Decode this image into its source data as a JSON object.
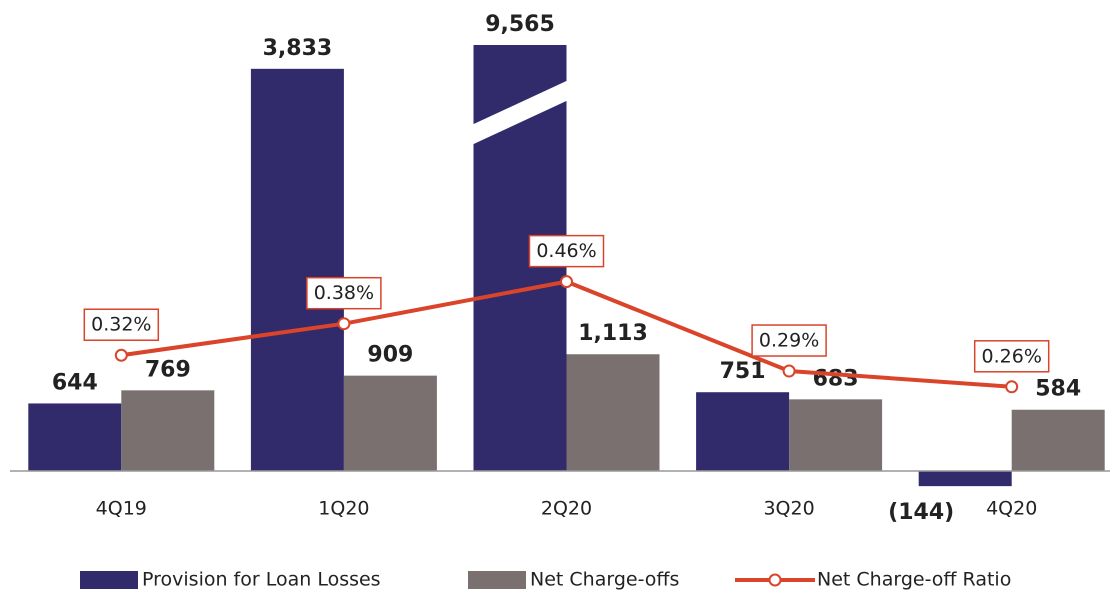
{
  "chart_data": {
    "type": "bar",
    "categories": [
      "4Q19",
      "1Q20",
      "2Q20",
      "3Q20",
      "4Q20"
    ],
    "series": [
      {
        "name": "Provision for Loan Losses",
        "color": "#312a6b",
        "values": [
          644,
          3833,
          9565,
          751,
          -144
        ],
        "value_labels": [
          "644",
          "3,833",
          "9,565",
          "751",
          "(144)"
        ]
      },
      {
        "name": "Net Charge-offs",
        "color": "#7a7070",
        "values": [
          769,
          909,
          1113,
          683,
          584
        ],
        "value_labels": [
          "769",
          "909",
          "1,113",
          "683",
          "584"
        ]
      },
      {
        "name": "Net Charge-off Ratio",
        "type": "line",
        "axis": "y2",
        "color": "#d9442a",
        "values": [
          0.32,
          0.38,
          0.46,
          0.29,
          0.26
        ],
        "value_labels": [
          "0.32%",
          "0.38%",
          "0.46%",
          "0.29%",
          "0.26%"
        ]
      }
    ],
    "ylim": [
      -400,
      4060
    ],
    "y2lim": [
      0.02,
      0.91
    ]
  }
}
